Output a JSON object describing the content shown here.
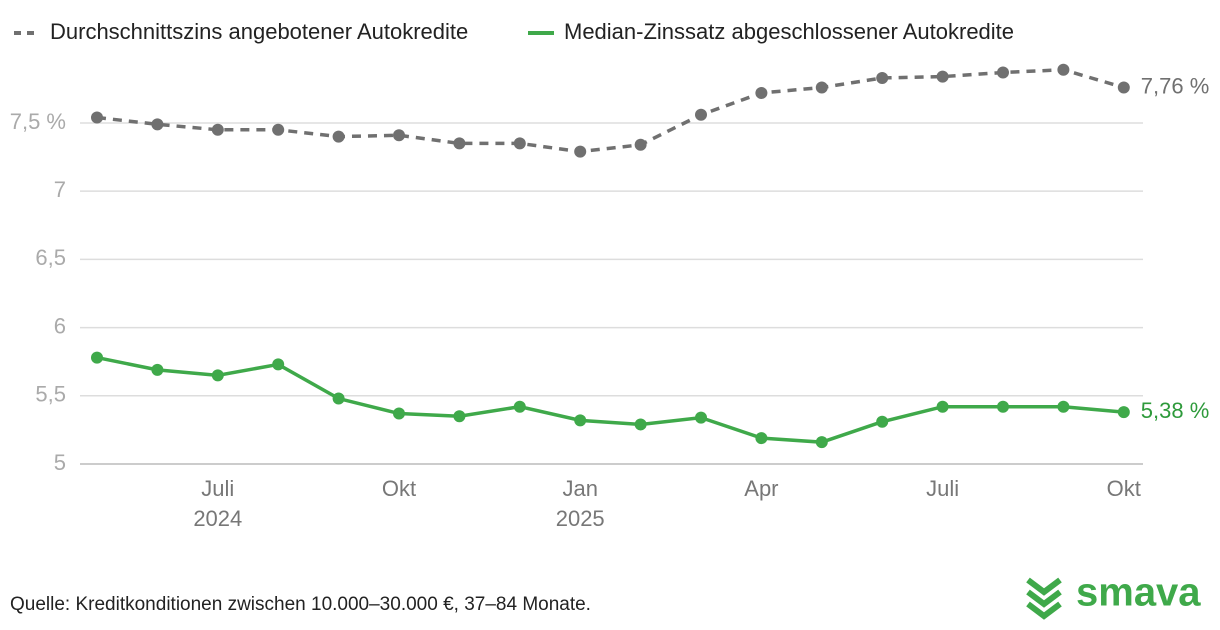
{
  "chart_data": {
    "type": "line",
    "categories": [
      null,
      null,
      "Juli",
      null,
      null,
      "Okt",
      null,
      null,
      "Jan",
      null,
      null,
      "Apr",
      null,
      null,
      "Juli",
      null,
      null,
      "Okt"
    ],
    "category_years": [
      null,
      null,
      "2024",
      null,
      null,
      null,
      null,
      null,
      "2025",
      null,
      null,
      null,
      null,
      null,
      null,
      null,
      null,
      null
    ],
    "series": [
      {
        "name": "Durchschnittszins angebotener Autokredite",
        "color": "#707070",
        "style": "dashed",
        "values": [
          7.54,
          7.49,
          7.45,
          7.45,
          7.4,
          7.41,
          7.35,
          7.35,
          7.29,
          7.34,
          7.56,
          7.72,
          7.76,
          7.83,
          7.84,
          7.87,
          7.89,
          7.76
        ],
        "value_labels": [
          null,
          null,
          null,
          null,
          null,
          null,
          null,
          null,
          null,
          null,
          null,
          null,
          null,
          null,
          null,
          null,
          null,
          "7,76 %"
        ]
      },
      {
        "name": "Median-Zinssatz abgeschlossener Autokredite",
        "color": "#3fa94a",
        "style": "solid",
        "values": [
          5.78,
          5.69,
          5.65,
          5.73,
          5.48,
          5.37,
          5.35,
          5.42,
          5.32,
          5.29,
          5.34,
          5.19,
          5.16,
          5.31,
          5.42,
          5.42,
          5.42,
          5.38
        ],
        "value_labels": [
          null,
          null,
          null,
          null,
          null,
          null,
          null,
          null,
          null,
          null,
          null,
          null,
          null,
          null,
          null,
          null,
          null,
          "5,38 %"
        ]
      }
    ],
    "ylim": [
      5,
      7.9
    ],
    "yticks": [
      5,
      {
        "value": 5.5,
        "label": "5,5"
      },
      6,
      {
        "value": 6.5,
        "label": "6,5"
      },
      7,
      {
        "value": 7.5,
        "label": "7,5 %"
      }
    ],
    "grid": true,
    "legend": "top",
    "source": "Quelle: Kreditkonditionen zwischen 10.000–30.000 €, 37–84 Monate.",
    "logo": "smava"
  }
}
